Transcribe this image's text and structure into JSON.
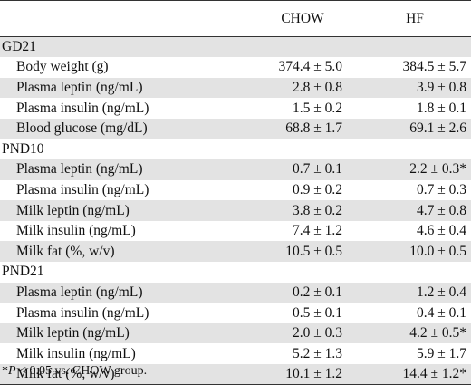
{
  "header": {
    "col_label": "",
    "col_chow": "CHOW",
    "col_hf": "HF"
  },
  "rows": [
    {
      "type": "group",
      "label": "GD21"
    },
    {
      "type": "data",
      "label": "Body weight (g)",
      "chow": "374.4 ± 5.0",
      "hf": "384.5 ± 5.7"
    },
    {
      "type": "data",
      "label": "Plasma leptin (ng/mL)",
      "chow": "2.8 ± 0.8",
      "hf": "3.9 ± 0.8"
    },
    {
      "type": "data",
      "label": "Plasma insulin (ng/mL)",
      "chow": "1.5 ± 0.2",
      "hf": "1.8 ± 0.1"
    },
    {
      "type": "data",
      "label": "Blood glucose (mg/dL)",
      "chow": "68.8 ± 1.7",
      "hf": "69.1 ± 2.6"
    },
    {
      "type": "group",
      "label": "PND10"
    },
    {
      "type": "data",
      "label": "Plasma leptin (ng/mL)",
      "chow": "0.7 ± 0.1",
      "hf": "2.2 ± 0.3*"
    },
    {
      "type": "data",
      "label": "Plasma insulin (ng/mL)",
      "chow": "0.9 ± 0.2",
      "hf": "0.7 ± 0.3"
    },
    {
      "type": "data",
      "label": "Milk leptin (ng/mL)",
      "chow": "3.8 ± 0.2",
      "hf": "4.7 ± 0.8"
    },
    {
      "type": "data",
      "label": "Milk insulin (ng/mL)",
      "chow": "7.4 ± 1.2",
      "hf": "4.6 ± 0.4"
    },
    {
      "type": "data",
      "label": "Milk fat (%, w/v)",
      "chow": "10.5 ± 0.5",
      "hf": "10.0 ± 0.5"
    },
    {
      "type": "group",
      "label": "PND21"
    },
    {
      "type": "data",
      "label": "Plasma leptin (ng/mL)",
      "chow": "0.2 ± 0.1",
      "hf": "1.2 ± 0.4"
    },
    {
      "type": "data",
      "label": "Plasma insulin (ng/mL)",
      "chow": "0.5 ± 0.1",
      "hf": "0.4 ± 0.1"
    },
    {
      "type": "data",
      "label": "Milk leptin (ng/mL)",
      "chow": "2.0 ± 0.3",
      "hf": "4.2 ± 0.5*"
    },
    {
      "type": "data",
      "label": "Milk insulin (ng/mL)",
      "chow": "5.2 ± 1.3",
      "hf": "5.9 ± 1.7"
    },
    {
      "type": "data",
      "label": "Milk fat (%, w/v)",
      "chow": "10.1 ± 1.2",
      "hf": "14.4 ± 1.2*"
    }
  ],
  "footnote": {
    "mark": "*",
    "var": "P",
    "text": " < 0.05 vs. CHOW group."
  },
  "colors": {
    "shade": "#e3e3e3",
    "rule": "#333333",
    "text": "#111111"
  }
}
